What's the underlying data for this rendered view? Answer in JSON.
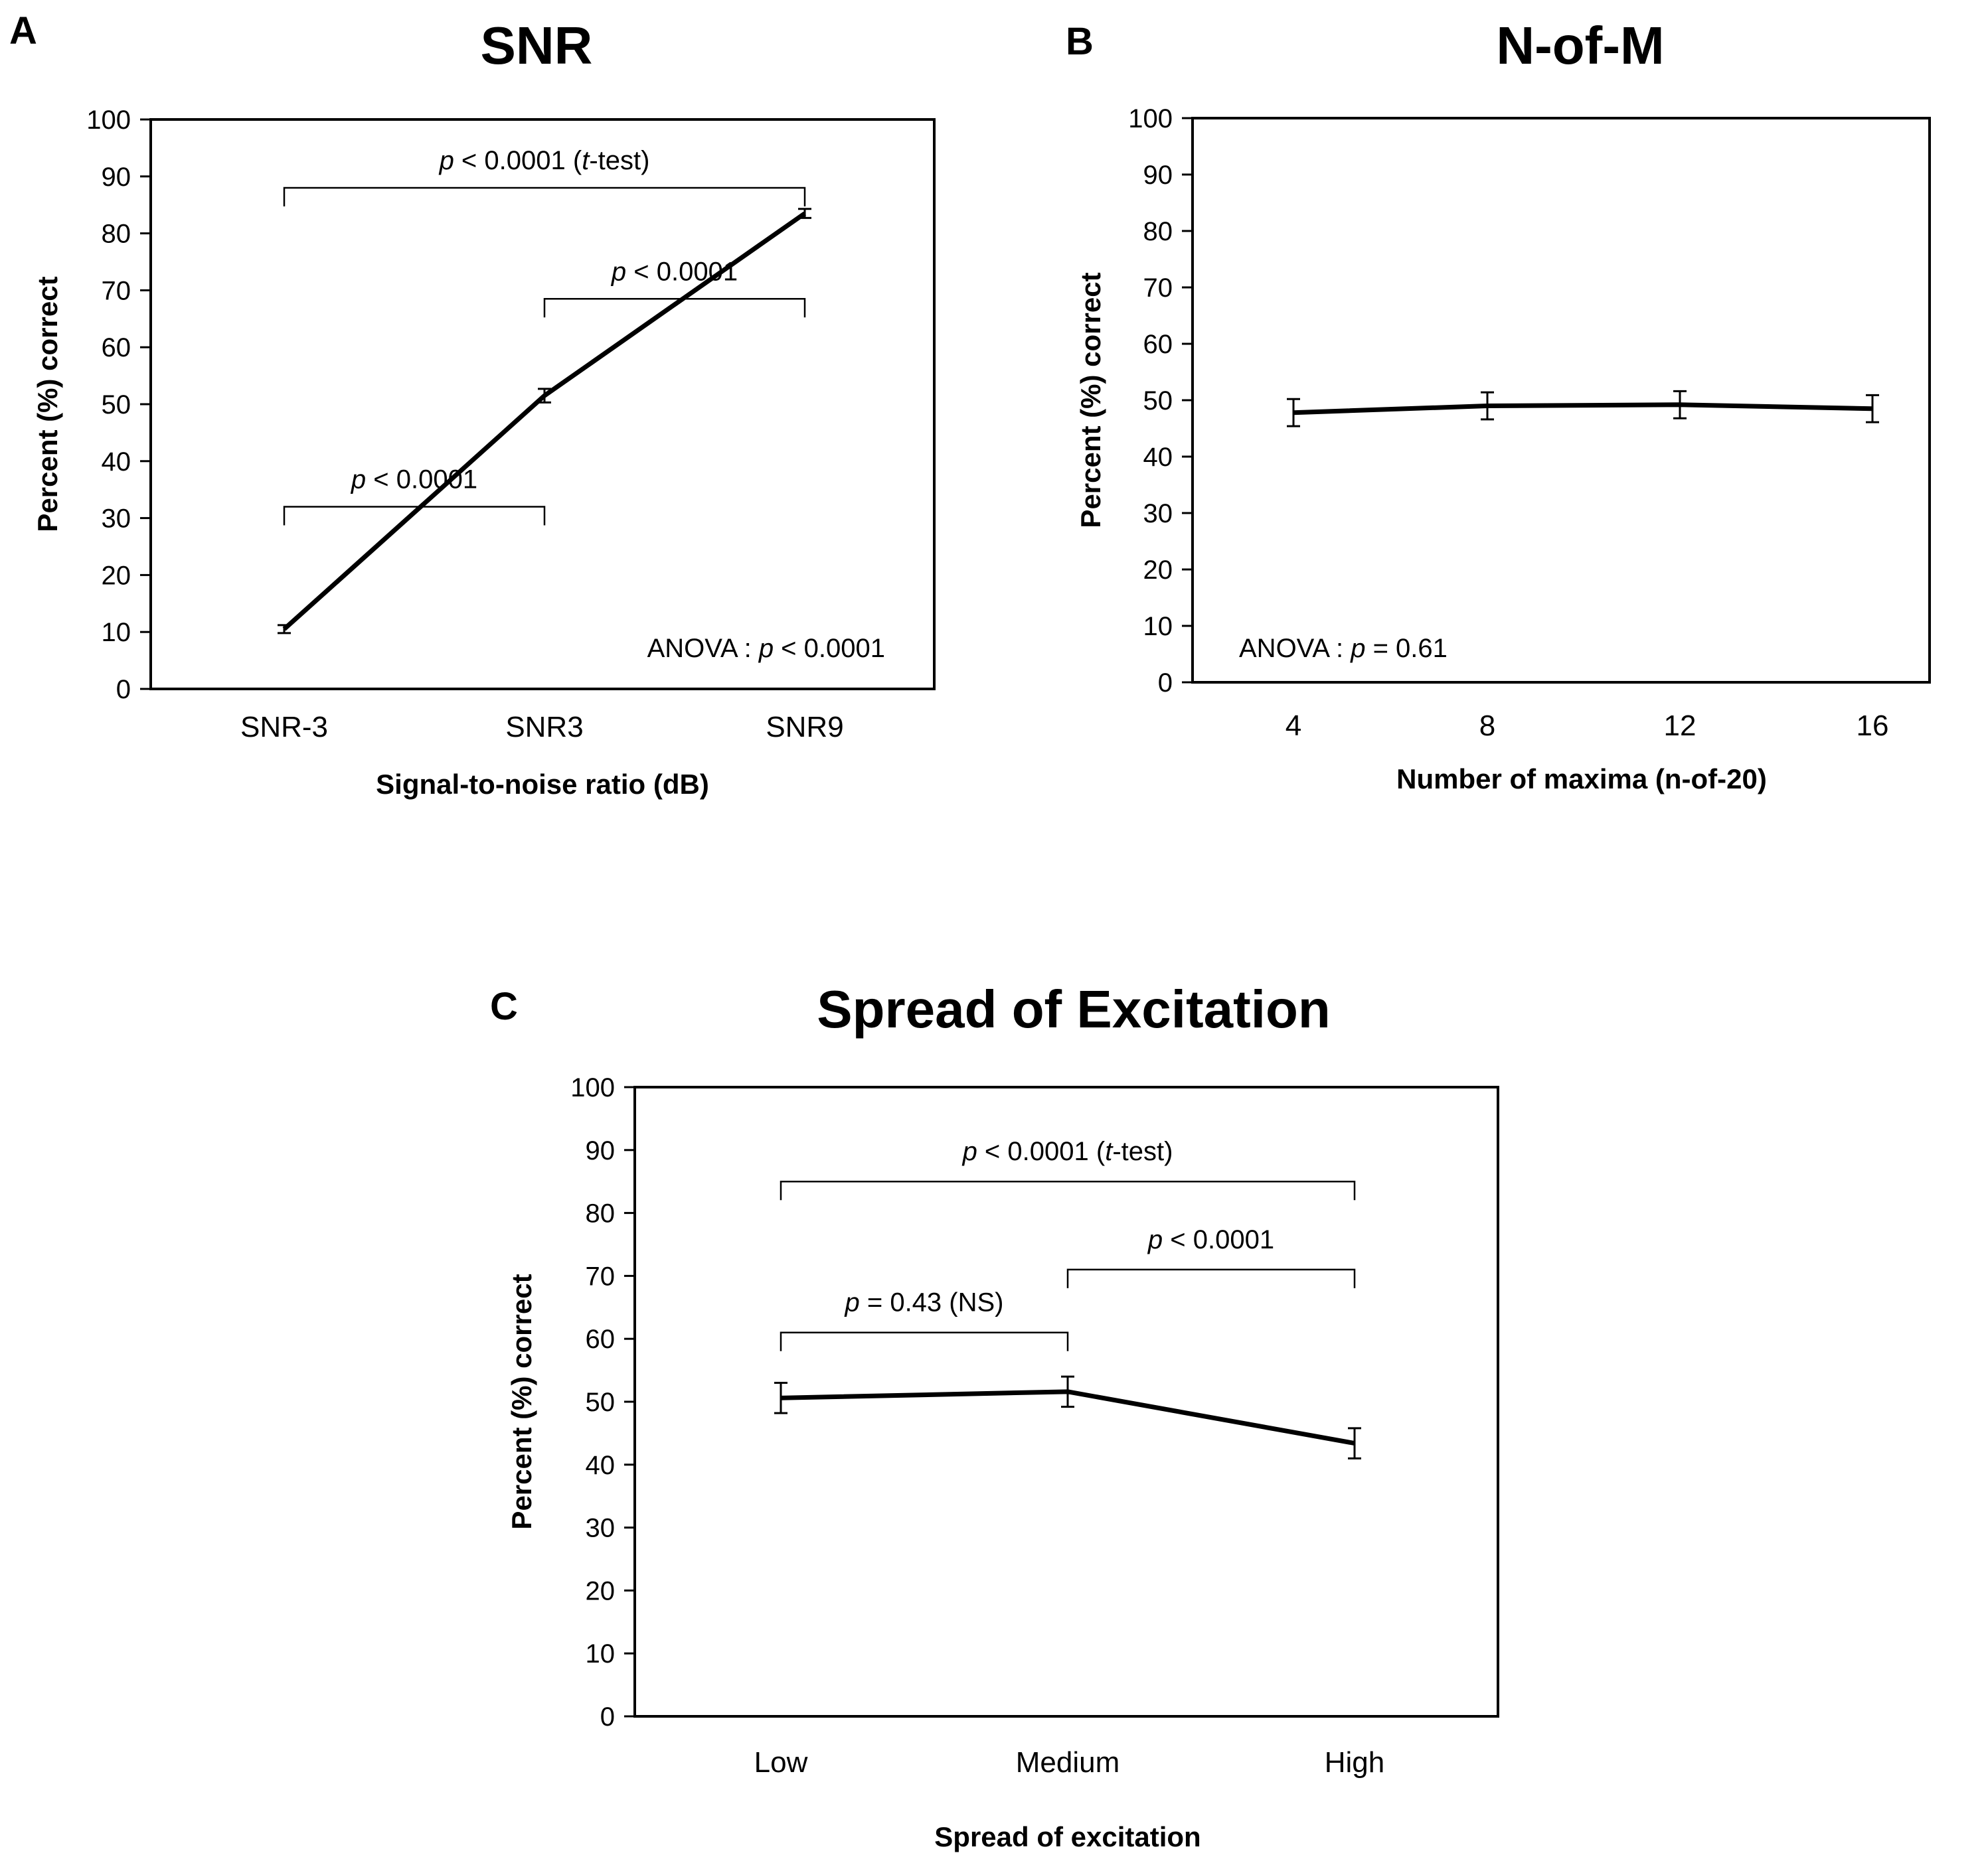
{
  "chart_data": [
    {
      "type": "line",
      "panel_label": "A",
      "title": "SNR",
      "xlabel": "Signal-to-noise ratio (dB)",
      "ylabel": "Percent (%) correct",
      "ylim": [
        0,
        100
      ],
      "yticks": [
        0,
        10,
        20,
        30,
        40,
        50,
        60,
        70,
        80,
        90,
        100
      ],
      "categories": [
        "SNR-3",
        "SNR3",
        "SNR9"
      ],
      "values": [
        10.5,
        51.5,
        83.5
      ],
      "errors": [
        0.7,
        1.2,
        0.8
      ],
      "anova": {
        "prefix": "ANOVA : ",
        "p": "p",
        "rest": " < 0.0001"
      },
      "comparisons": [
        {
          "from": 0,
          "to": 2,
          "level": 88,
          "p": "p",
          "mid": " < 0.0001 (",
          "t": "t",
          "end": "-test)"
        },
        {
          "from": 1,
          "to": 2,
          "level": 68.5,
          "p": "p",
          "mid": " < 0.0001",
          "t": "",
          "end": ""
        },
        {
          "from": 0,
          "to": 1,
          "level": 32,
          "p": "p",
          "mid": " < 0.0001",
          "t": "",
          "end": ""
        }
      ]
    },
    {
      "type": "line",
      "panel_label": "B",
      "title": "N-of-M",
      "xlabel": "Number of maxima (n-of-20)",
      "ylabel": "Percent (%) correct",
      "ylim": [
        0,
        100
      ],
      "yticks": [
        0,
        10,
        20,
        30,
        40,
        50,
        60,
        70,
        80,
        90,
        100
      ],
      "categories": [
        "4",
        "8",
        "12",
        "16"
      ],
      "values": [
        47.8,
        49.0,
        49.2,
        48.5
      ],
      "errors": [
        2.4,
        2.4,
        2.4,
        2.4
      ],
      "anova": {
        "prefix": "ANOVA : ",
        "p": "p",
        "rest": " = 0.61"
      },
      "comparisons": []
    },
    {
      "type": "line",
      "panel_label": "C",
      "title": "Spread of Excitation",
      "xlabel": "Spread of excitation",
      "ylabel": "Percent (%) correct",
      "ylim": [
        0,
        100
      ],
      "yticks": [
        0,
        10,
        20,
        30,
        40,
        50,
        60,
        70,
        80,
        90,
        100
      ],
      "categories": [
        "Low",
        "Medium",
        "High"
      ],
      "values": [
        50.6,
        51.6,
        43.4
      ],
      "errors": [
        2.4,
        2.4,
        2.4
      ],
      "comparisons": [
        {
          "from": 0,
          "to": 2,
          "level": 85,
          "p": "p",
          "mid": " < 0.0001 (",
          "t": "t",
          "end": "-test)"
        },
        {
          "from": 1,
          "to": 2,
          "level": 71,
          "p": "p",
          "mid": " < 0.0001",
          "t": "",
          "end": ""
        },
        {
          "from": 0,
          "to": 1,
          "level": 61,
          "p": "p",
          "mid": " = 0.43 (NS)",
          "t": "",
          "end": ""
        }
      ]
    }
  ]
}
